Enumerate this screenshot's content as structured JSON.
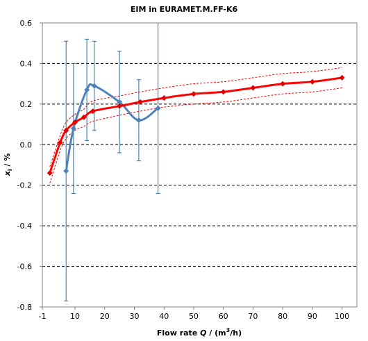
{
  "chart_data": {
    "type": "line",
    "title": "EIM in EURAMET.M.FF-K6",
    "xlabel": {
      "prefix": "Flow rate ",
      "symbol": "Q",
      "mid": " / (m",
      "sup": "3",
      "suffix": "/h)"
    },
    "ylabel": {
      "symbol": "x",
      "sub": "i",
      "suffix": " / %"
    },
    "xlim": [
      -1,
      105
    ],
    "ylim": [
      -0.8,
      0.6
    ],
    "xticks": [
      -1,
      10,
      20,
      30,
      40,
      50,
      60,
      70,
      80,
      90,
      100
    ],
    "yticks": [
      -0.8,
      -0.6,
      -0.4,
      -0.2,
      0.0,
      0.2,
      0.4,
      0.6
    ],
    "ytick_labels": [
      "-0.8",
      "-0.6",
      "-0.4",
      "-0.2",
      "0.0",
      "0.2",
      "0.4",
      "0.6"
    ],
    "grid": "horizontal-dashed",
    "series": [
      {
        "color": "#ff0000",
        "marker": "diamond",
        "x": [
          1.5,
          5,
          7,
          10,
          13,
          16,
          25,
          32,
          40,
          50,
          60,
          70,
          80,
          90,
          100
        ],
        "y": [
          -0.14,
          0.01,
          0.07,
          0.11,
          0.135,
          0.165,
          0.19,
          0.21,
          0.23,
          0.25,
          0.26,
          0.28,
          0.3,
          0.31,
          0.33
        ],
        "band_upper": [
          -0.11,
          0.045,
          0.11,
          0.15,
          0.175,
          0.215,
          0.24,
          0.26,
          0.28,
          0.3,
          0.31,
          0.33,
          0.35,
          0.36,
          0.38
        ],
        "band_lower": [
          -0.19,
          -0.03,
          0.03,
          0.07,
          0.09,
          0.115,
          0.145,
          0.165,
          0.185,
          0.2,
          0.21,
          0.23,
          0.25,
          0.26,
          0.28
        ]
      },
      {
        "color": "#4f81bd",
        "marker": "diamond",
        "x": [
          7,
          9.5,
          14,
          16.5,
          25,
          31.5,
          38
        ],
        "y": [
          -0.13,
          0.08,
          0.27,
          0.29,
          0.21,
          0.12,
          0.18
        ],
        "err_upper": [
          0.51,
          0.4,
          0.52,
          0.51,
          0.46,
          0.32,
          0.6
        ],
        "err_lower": [
          -0.77,
          -0.24,
          0.02,
          0.07,
          -0.04,
          -0.08,
          -0.24
        ]
      }
    ]
  }
}
